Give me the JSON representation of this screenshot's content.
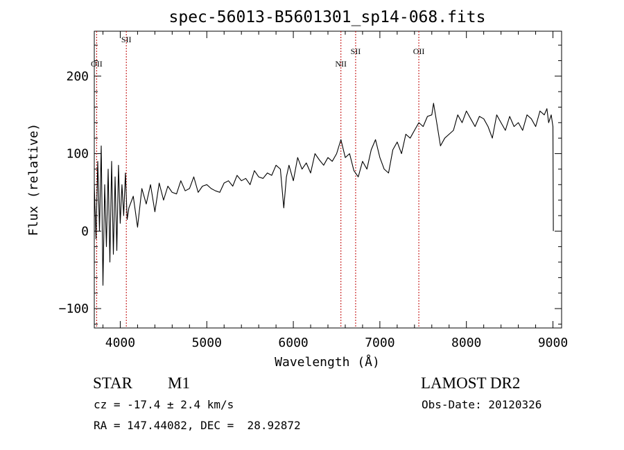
{
  "chart_data": {
    "type": "line",
    "title": "spec-56013-B5601301_sp14-068.fits",
    "xlabel": "Wavelength (Å)",
    "ylabel": "Flux (relative)",
    "xlim": [
      3700,
      9100
    ],
    "ylim": [
      -125,
      258
    ],
    "x_ticks": [
      4000,
      5000,
      6000,
      7000,
      8000,
      9000
    ],
    "y_ticks": [
      -100,
      0,
      100,
      200
    ],
    "grid": false,
    "line_color": "#000000",
    "marker_color": "#c00000",
    "series": [
      {
        "x": [
          3700,
          3720,
          3740,
          3760,
          3780,
          3800,
          3820,
          3840,
          3860,
          3880,
          3900,
          3920,
          3940,
          3960,
          3980,
          4000,
          4020,
          4040,
          4060,
          4080,
          4100,
          4150,
          4200,
          4250,
          4300,
          4350,
          4400,
          4450,
          4500,
          4550,
          4600,
          4650,
          4700,
          4750,
          4800,
          4850,
          4900,
          4950,
          5000,
          5050,
          5100,
          5150,
          5200,
          5250,
          5300,
          5350,
          5400,
          5450,
          5500,
          5550,
          5600,
          5650,
          5700,
          5750,
          5800,
          5850,
          5890,
          5920,
          5950,
          6000,
          6050,
          6100,
          6150,
          6200,
          6250,
          6300,
          6350,
          6400,
          6450,
          6500,
          6550,
          6600,
          6650,
          6700,
          6750,
          6800,
          6850,
          6900,
          6950,
          7000,
          7050,
          7100,
          7150,
          7200,
          7250,
          7300,
          7350,
          7400,
          7450,
          7500,
          7550,
          7600,
          7620,
          7650,
          7700,
          7750,
          7800,
          7850,
          7900,
          7950,
          8000,
          8050,
          8100,
          8150,
          8200,
          8250,
          8300,
          8350,
          8400,
          8450,
          8500,
          8550,
          8600,
          8650,
          8700,
          8750,
          8800,
          8850,
          8900,
          8930,
          8950,
          8980,
          9000,
          9005
        ],
        "y": [
          60,
          -10,
          90,
          0,
          110,
          -70,
          60,
          -20,
          80,
          -40,
          90,
          -30,
          70,
          -25,
          85,
          10,
          60,
          20,
          75,
          15,
          30,
          45,
          5,
          55,
          35,
          60,
          25,
          62,
          40,
          58,
          50,
          48,
          65,
          52,
          55,
          70,
          50,
          58,
          60,
          55,
          52,
          50,
          62,
          65,
          58,
          72,
          65,
          68,
          60,
          78,
          70,
          68,
          75,
          72,
          85,
          80,
          30,
          70,
          85,
          65,
          95,
          80,
          88,
          75,
          100,
          92,
          85,
          95,
          90,
          100,
          118,
          95,
          100,
          78,
          70,
          90,
          80,
          105,
          118,
          95,
          80,
          75,
          105,
          115,
          100,
          125,
          120,
          130,
          140,
          135,
          148,
          150,
          165,
          145,
          110,
          120,
          125,
          130,
          150,
          140,
          155,
          145,
          135,
          148,
          145,
          135,
          120,
          150,
          140,
          130,
          148,
          135,
          140,
          130,
          150,
          145,
          135,
          155,
          150,
          158,
          140,
          150,
          135,
          0
        ]
      }
    ],
    "markers": [
      {
        "label": "OII",
        "x": 3727
      },
      {
        "label": "SII",
        "x": 4070
      },
      {
        "label": "NII",
        "x": 6550
      },
      {
        "label": "SII",
        "x": 6720
      },
      {
        "label": "OII",
        "x": 7450
      }
    ]
  },
  "info": {
    "class_label": "STAR",
    "subclass_label": "M1",
    "cz_text": "cz = -17.4 ± 2.4 km/s",
    "coords_text": "RA = 147.44082, DEC =  28.92872",
    "survey_label": "LAMOST DR2",
    "obs_date_text": "Obs-Date: 20120326"
  }
}
